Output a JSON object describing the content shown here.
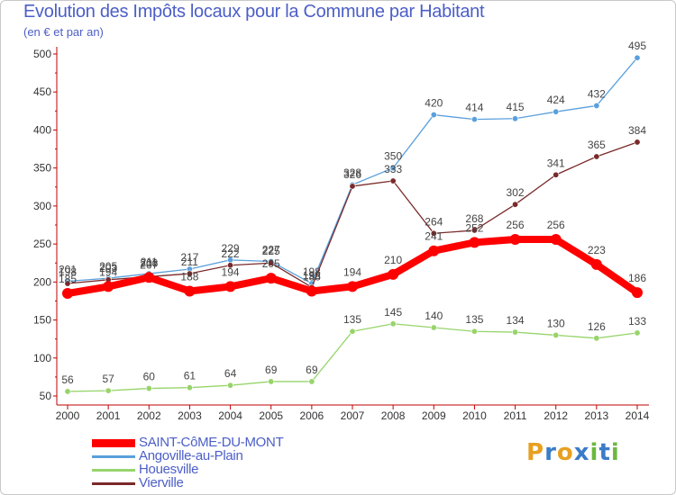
{
  "chart_data": {
    "type": "line",
    "title": "Evolution des Impôts locaux pour la Commune par Habitant",
    "subtitle": "(en € et par an)",
    "x": [
      "2000",
      "2001",
      "2002",
      "2003",
      "2004",
      "2005",
      "2006",
      "2007",
      "2008",
      "2009",
      "2010",
      "2011",
      "2012",
      "2013",
      "2014"
    ],
    "ylim": [
      50,
      500
    ],
    "yticks": [
      50,
      100,
      150,
      200,
      250,
      300,
      350,
      400,
      450,
      500
    ],
    "grid": false,
    "legend_position": "bottom-left",
    "series": [
      {
        "name": "SAINT-CôME-DU-MONT",
        "color": "#ff0000",
        "emphasis": true,
        "values": [
          185,
          194,
          206,
          188,
          194,
          205,
          188,
          194,
          210,
          241,
          252,
          256,
          256,
          223,
          186
        ]
      },
      {
        "name": "Angoville-au-Plain",
        "color": "#5aa0dc",
        "emphasis": false,
        "values": [
          201,
          205,
          211,
          217,
          229,
          227,
          198,
          328,
          350,
          420,
          414,
          415,
          424,
          432,
          495
        ]
      },
      {
        "name": "Houesville",
        "color": "#97d46b",
        "emphasis": false,
        "values": [
          56,
          57,
          60,
          61,
          64,
          69,
          69,
          135,
          145,
          140,
          135,
          134,
          130,
          126,
          133
        ]
      },
      {
        "name": "Vierville",
        "color": "#7a2a2a",
        "emphasis": false,
        "values": [
          198,
          203,
          207,
          211,
          222,
          225,
          193,
          326,
          333,
          264,
          268,
          302,
          341,
          365,
          384
        ]
      }
    ]
  },
  "logo": {
    "text": "Proxiti",
    "letters": [
      {
        "ch": "P",
        "color": "#e8a020"
      },
      {
        "ch": "r",
        "color": "#3a7cc8"
      },
      {
        "ch": "o",
        "color": "#e8a020"
      },
      {
        "ch": "x",
        "color": "#3a7cc8"
      },
      {
        "ch": "i",
        "color": "#6cb840"
      },
      {
        "ch": "t",
        "color": "#3a7cc8"
      },
      {
        "ch": "i",
        "color": "#6cb840"
      }
    ]
  }
}
